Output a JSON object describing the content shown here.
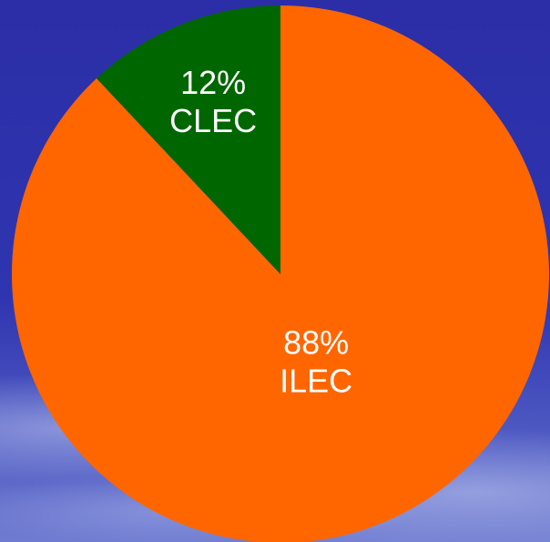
{
  "chart_data": {
    "type": "pie",
    "categories": [
      "ILEC",
      "CLEC"
    ],
    "values": [
      88,
      12
    ],
    "value_labels": [
      "88%",
      "12%"
    ],
    "colors": [
      "#ff6600",
      "#006600"
    ]
  }
}
